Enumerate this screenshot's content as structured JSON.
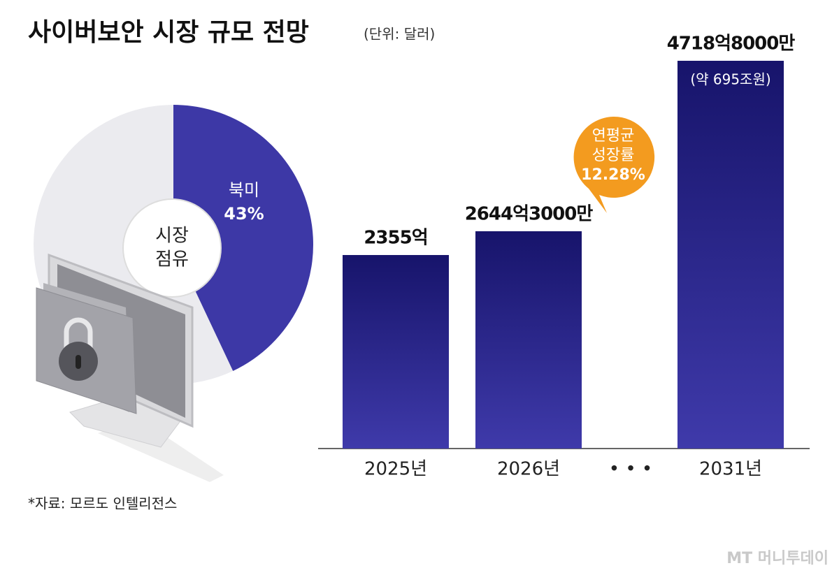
{
  "chart_data": [
    {
      "type": "pie",
      "title": "사이버보안 시장 규모 전망",
      "subtitle": "(단위: 달러)",
      "center_label": [
        "시장",
        "점유"
      ],
      "categories": [
        "북미",
        null
      ],
      "values": [
        43,
        57
      ],
      "value_labels": [
        "43%",
        null
      ],
      "colors": [
        "#3d38a6",
        "#ebebef"
      ]
    },
    {
      "type": "bar",
      "categories": [
        "2025년",
        "2026년",
        "• • •",
        "2031년"
      ],
      "values": [
        2355,
        2644.3,
        null,
        4718.8
      ],
      "value_labels": [
        "2355억",
        "2644억3000만",
        null,
        "4718억8000만"
      ],
      "bar_note": {
        "index": 3,
        "text": "(약 695조원)"
      },
      "callout": [
        "연평균",
        "성장률",
        "12.28%"
      ],
      "colors": [
        "#17146b",
        "#3f3aaa"
      ]
    },
    {
      "type": "note",
      "source": "*자료: 모르도 인텔리전스",
      "logo": "MT 머니투데이"
    }
  ]
}
